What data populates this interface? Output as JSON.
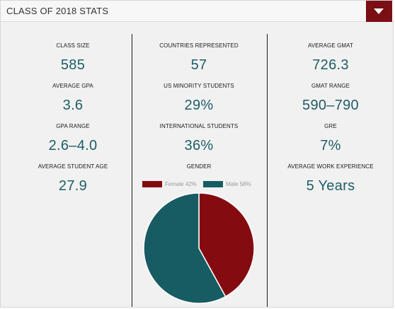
{
  "header": {
    "title": "CLASS OF 2018 STATS",
    "toggle_icon": "caret-down-icon"
  },
  "colors": {
    "accent": "#7a0f14",
    "value_text": "#1e5d65",
    "female": "#840c10",
    "male": "#185c63"
  },
  "left": [
    {
      "label": "CLASS SIZE",
      "value": "585"
    },
    {
      "label": "AVERAGE GPA",
      "value": "3.6"
    },
    {
      "label": "GPA RANGE",
      "value": "2.6–4.0"
    },
    {
      "label": "AVERAGE STUDENT AGE",
      "value": "27.9"
    }
  ],
  "middle": [
    {
      "label": "COUNTRIES REPRESENTED",
      "value": "57"
    },
    {
      "label": "US MINORITY STUDENTS",
      "value": "29%"
    },
    {
      "label": "INTERNATIONAL STUDENTS",
      "value": "36%"
    }
  ],
  "gender": {
    "label": "GENDER"
  },
  "right": [
    {
      "label": "AVERAGE GMAT",
      "value": "726.3"
    },
    {
      "label": "GMAT RANGE",
      "value": "590–790"
    },
    {
      "label": "GRE",
      "value": "7%"
    },
    {
      "label": "AVERAGE WORK EXPERIENCE",
      "value": "5 Years"
    }
  ],
  "chart_data": {
    "type": "pie",
    "categories": [
      "Female",
      "Male"
    ],
    "values": [
      42,
      58
    ],
    "legend": [
      "Female 42%",
      "Male 58%"
    ],
    "colors": [
      "#840c10",
      "#185c63"
    ],
    "legend_position": "top"
  }
}
